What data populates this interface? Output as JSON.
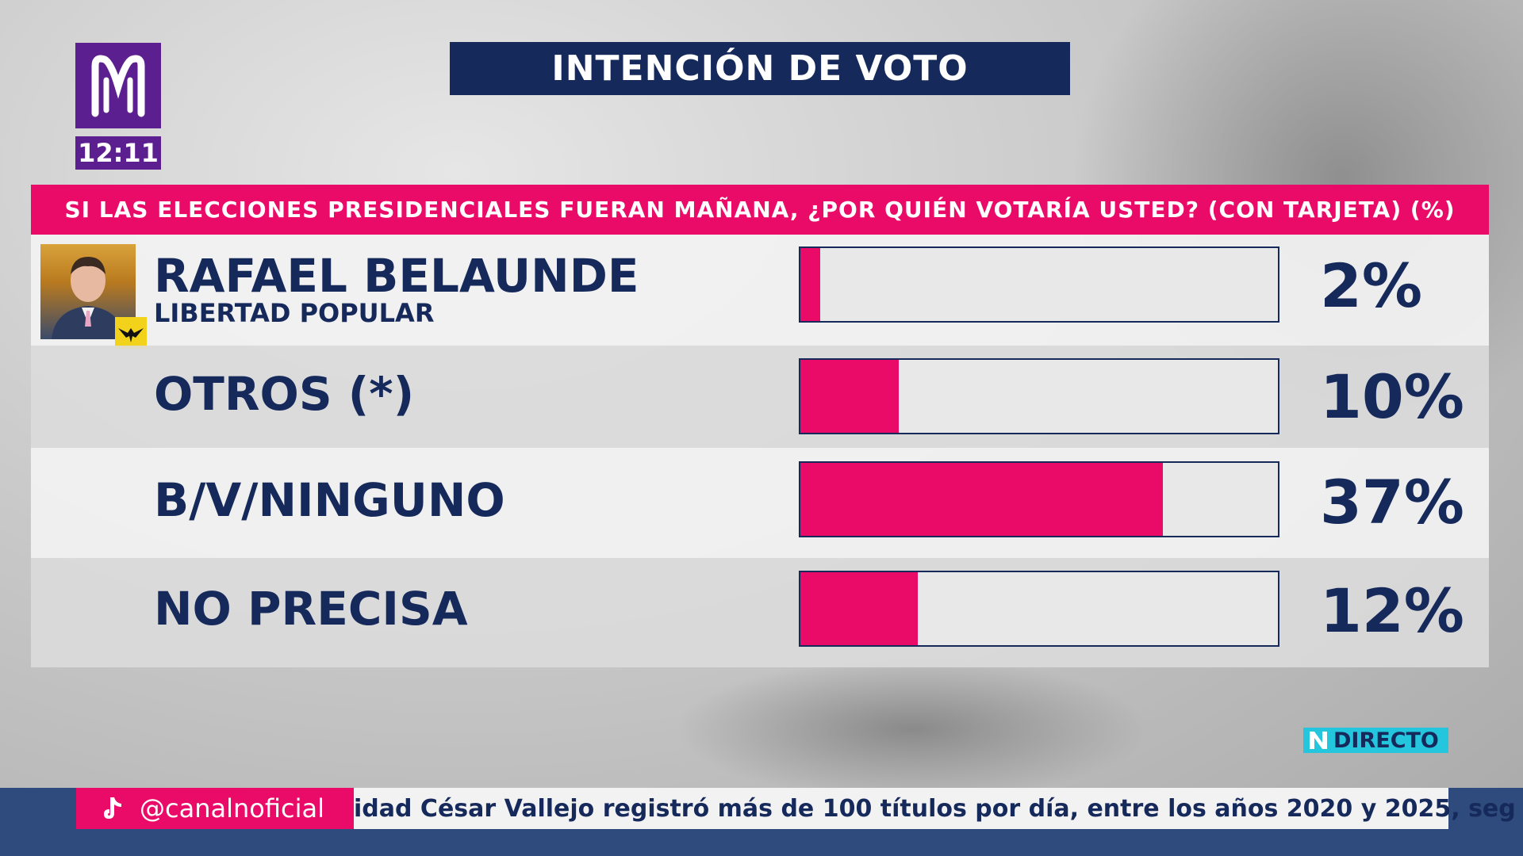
{
  "channel": {
    "clock": "12:11",
    "colors": {
      "brand_purple": "#5b1f8f",
      "navy": "#16295b",
      "magenta": "#ea0a68",
      "cyan": "#24c6de"
    },
    "logo_icon": "channel-logo-icon"
  },
  "header": {
    "title": "INTENCIÓN DE VOTO"
  },
  "question": {
    "text": "SI LAS ELECCIONES PRESIDENCIALES FUERAN MAÑANA, ¿POR QUIÉN VOTARÍA USTED? (CON TARJETA) (%)"
  },
  "chart_data": {
    "type": "bar",
    "title": "INTENCIÓN DE VOTO",
    "subtitle": "SI LAS ELECCIONES PRESIDENCIALES FUERAN MAÑANA, ¿POR QUIÉN VOTARÍA USTED? (CON TARJETA) (%)",
    "orientation": "horizontal",
    "categories": [
      "RAFAEL BELAUNDE",
      "OTROS (*)",
      "B/V/NINGUNO",
      "NO PRECISA"
    ],
    "subcategories": [
      "LIBERTAD POPULAR",
      "",
      "",
      ""
    ],
    "values": [
      2,
      10,
      37,
      12
    ],
    "value_labels": [
      "2%",
      "10%",
      "37%",
      "12%"
    ],
    "xlim": [
      0,
      100
    ],
    "bar_color": "#ea0a68",
    "grid": false
  },
  "live_badge": {
    "icon": "n-logo-icon",
    "label": "DIRECTO"
  },
  "footer": {
    "social_icon": "tiktok-icon",
    "handle": "@canalnoficial",
    "ticker": "idad César Vallejo registró más de 100 títulos por día, entre los años 2020 y 2025, seg"
  }
}
